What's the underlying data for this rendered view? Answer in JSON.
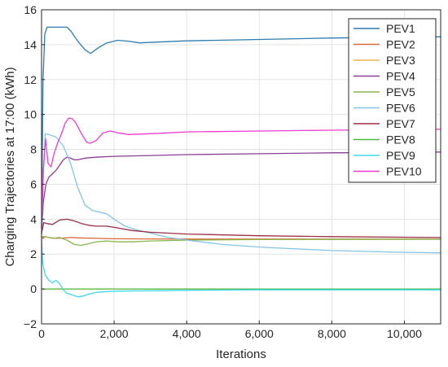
{
  "chart_data": {
    "type": "line",
    "title": "",
    "xlabel": "Iterations",
    "ylabel": "Charging Trajectories at 17:00 (kWh)",
    "xlim": [
      0,
      11000
    ],
    "ylim": [
      -2,
      16
    ],
    "xticks": [
      0,
      2000,
      4000,
      6000,
      8000,
      10000
    ],
    "xtick_labels": [
      "0",
      "2,000",
      "4,000",
      "6,000",
      "8,000",
      "10,000"
    ],
    "yticks": [
      -2,
      0,
      2,
      4,
      6,
      8,
      10,
      12,
      14,
      16
    ],
    "ytick_labels": [
      "−2",
      "0",
      "2",
      "4",
      "6",
      "8",
      "10",
      "12",
      "14",
      "16"
    ],
    "grid": true,
    "legend_position": "top-right",
    "series": [
      {
        "name": "PEV1",
        "color": "#2e7bb0",
        "x": [
          0,
          40,
          90,
          150,
          300,
          500,
          700,
          800,
          1000,
          1200,
          1350,
          1550,
          1800,
          2100,
          2400,
          2700,
          3200,
          4000,
          6000,
          8000,
          11000
        ],
        "y": [
          3.5,
          12.0,
          14.6,
          15.0,
          15.0,
          15.0,
          15.0,
          14.8,
          14.2,
          13.7,
          13.5,
          13.8,
          14.1,
          14.25,
          14.2,
          14.1,
          14.15,
          14.22,
          14.3,
          14.38,
          14.45
        ]
      },
      {
        "name": "PEV2",
        "color": "#d96a3a",
        "x": [
          0,
          40,
          100,
          200,
          400,
          600,
          800,
          1000,
          1500,
          2000,
          3000,
          4000,
          6000,
          8000,
          11000
        ],
        "y": [
          3.0,
          2.9,
          3.0,
          2.95,
          2.9,
          2.92,
          2.95,
          2.93,
          2.9,
          2.88,
          2.87,
          2.86,
          2.86,
          2.86,
          2.86
        ]
      },
      {
        "name": "PEV3",
        "color": "#e8b64a",
        "x": [
          0,
          500,
          1000,
          2000,
          4000,
          6000,
          8000,
          11000
        ],
        "y": [
          0.0,
          0.0,
          0.0,
          0.0,
          0.0,
          0.0,
          0.0,
          0.0
        ]
      },
      {
        "name": "PEV4",
        "color": "#8a3f95",
        "x": [
          0,
          50,
          120,
          200,
          300,
          400,
          500,
          600,
          700,
          800,
          900,
          1000,
          1200,
          1500,
          2000,
          3000,
          4000,
          6000,
          8000,
          11000
        ],
        "y": [
          3.2,
          5.0,
          6.0,
          6.4,
          6.6,
          6.8,
          7.1,
          7.4,
          7.55,
          7.5,
          7.4,
          7.4,
          7.5,
          7.55,
          7.6,
          7.65,
          7.7,
          7.75,
          7.8,
          7.85
        ]
      },
      {
        "name": "PEV5",
        "color": "#86b84a",
        "x": [
          0,
          100,
          200,
          300,
          500,
          700,
          900,
          1100,
          1300,
          1500,
          1800,
          2100,
          2500,
          3000,
          4000,
          6000,
          8000,
          11000
        ],
        "y": [
          3.0,
          3.0,
          2.95,
          2.9,
          2.95,
          2.8,
          2.55,
          2.5,
          2.6,
          2.7,
          2.75,
          2.7,
          2.7,
          2.75,
          2.8,
          2.83,
          2.84,
          2.85
        ]
      },
      {
        "name": "PEV6",
        "color": "#84c4e6",
        "x": [
          0,
          40,
          100,
          200,
          400,
          600,
          800,
          1000,
          1200,
          1400,
          1600,
          1800,
          2000,
          2300,
          2600,
          3000,
          3500,
          4000,
          5000,
          6000,
          8000,
          10000,
          11000
        ],
        "y": [
          3.0,
          6.0,
          8.9,
          8.85,
          8.7,
          8.2,
          7.2,
          5.8,
          4.8,
          4.5,
          4.4,
          4.3,
          4.0,
          3.6,
          3.4,
          3.2,
          2.95,
          2.8,
          2.55,
          2.4,
          2.2,
          2.1,
          2.07
        ]
      },
      {
        "name": "PEV7",
        "color": "#9a2f45",
        "x": [
          0,
          60,
          150,
          300,
          500,
          700,
          900,
          1100,
          1300,
          1500,
          1800,
          2100,
          2500,
          3000,
          4000,
          6000,
          8000,
          11000
        ],
        "y": [
          3.2,
          3.8,
          3.75,
          3.7,
          3.95,
          4.0,
          3.9,
          3.75,
          3.65,
          3.6,
          3.6,
          3.5,
          3.35,
          3.25,
          3.15,
          3.05,
          3.0,
          2.95
        ]
      },
      {
        "name": "PEV8",
        "color": "#4dbb3d",
        "x": [
          0,
          500,
          1000,
          2000,
          4000,
          6000,
          8000,
          11000
        ],
        "y": [
          0.0,
          0.0,
          0.0,
          0.0,
          0.0,
          0.0,
          0.0,
          0.0
        ]
      },
      {
        "name": "PEV9",
        "color": "#3ed8ef",
        "x": [
          0,
          30,
          100,
          200,
          300,
          400,
          500,
          600,
          700,
          850,
          1000,
          1150,
          1300,
          1500,
          1800,
          2200,
          3000,
          4000,
          6000,
          8000,
          11000
        ],
        "y": [
          3.0,
          1.5,
          0.8,
          0.5,
          0.35,
          0.5,
          0.3,
          -0.05,
          -0.25,
          -0.35,
          -0.45,
          -0.4,
          -0.3,
          -0.2,
          -0.15,
          -0.12,
          -0.1,
          -0.08,
          -0.05,
          -0.05,
          -0.05
        ]
      },
      {
        "name": "PEV10",
        "color": "#ee3bd4",
        "x": [
          0,
          50,
          110,
          180,
          260,
          350,
          450,
          550,
          650,
          750,
          850,
          950,
          1100,
          1250,
          1350,
          1500,
          1700,
          1900,
          2100,
          2400,
          3000,
          4000,
          6000,
          8000,
          11000
        ],
        "y": [
          3.5,
          6.8,
          8.6,
          7.2,
          7.0,
          7.8,
          8.4,
          8.9,
          9.5,
          9.8,
          9.75,
          9.5,
          8.9,
          8.4,
          8.35,
          8.5,
          8.95,
          9.05,
          8.95,
          8.85,
          8.9,
          9.0,
          9.05,
          9.1,
          9.15
        ]
      }
    ]
  }
}
